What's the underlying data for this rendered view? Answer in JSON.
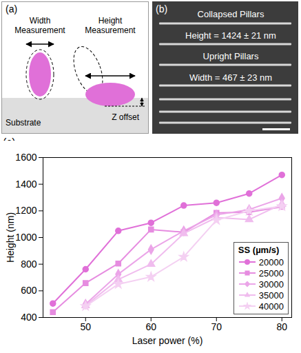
{
  "chart_data": {
    "type": "line",
    "label": "(c)",
    "x_label": "Laser power (%)",
    "y_label": "Height (nm)",
    "x": [
      45,
      50,
      55,
      60,
      65,
      70,
      75,
      80
    ],
    "xlim": [
      43.5,
      81.5
    ],
    "xticks": [
      50,
      60,
      70,
      80
    ],
    "ylim": [
      400,
      1600
    ],
    "yticks": [
      400,
      600,
      800,
      1000,
      1200,
      1400,
      1600
    ],
    "grid": false,
    "legend": "lower right",
    "legend_title": "SS (µm/s)",
    "series": [
      {
        "name": "20000",
        "color": "#e070d8",
        "marker": "circle",
        "values": [
          505,
          762,
          1050,
          1110,
          1240,
          1260,
          1330,
          1470
        ]
      },
      {
        "name": "25000",
        "color": "#e68ce0",
        "marker": "square",
        "values": [
          440,
          658,
          805,
          1060,
          1040,
          1185,
          1190,
          1230
        ]
      },
      {
        "name": "30000",
        "color": "#eba5e8",
        "marker": "diamond",
        "values": [
          null,
          500,
          725,
          910,
          1050,
          1170,
          1210,
          1295
        ]
      },
      {
        "name": "35000",
        "color": "#f0bcee",
        "marker": "triangle",
        "values": [
          null,
          490,
          685,
          800,
          1030,
          1150,
          1135,
          1250
        ]
      },
      {
        "name": "40000",
        "color": "#f4d0f2",
        "marker": "star",
        "values": [
          null,
          485,
          650,
          705,
          855,
          1130,
          1200,
          1235
        ]
      }
    ]
  },
  "panel_a": {
    "label": "(a)",
    "width_text": "Width Measurement",
    "height_text": "Height Measurement",
    "substrate_text": "Substrate",
    "z_offset_text": "Z offset"
  },
  "panel_b": {
    "label": "(b)",
    "collapsed_title": "Collapsed Pillars",
    "collapsed_measure": "Height = 1424 ± 21 nm",
    "upright_title": "Upright Pillars",
    "upright_measure": "Width = 467 ± 23 nm"
  }
}
